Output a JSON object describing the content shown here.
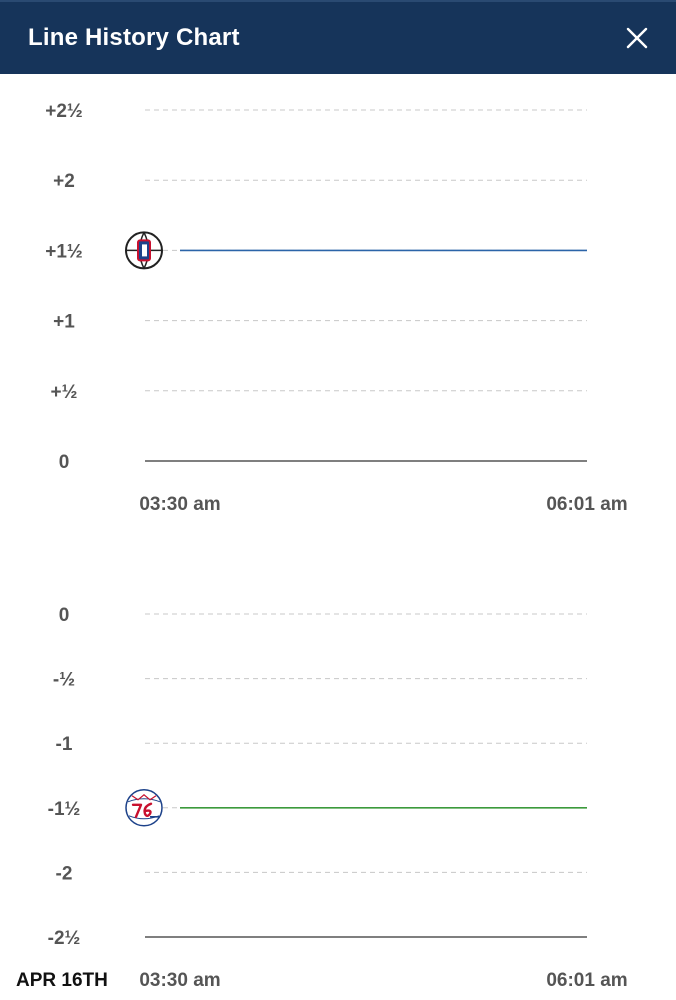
{
  "header": {
    "title": "Line History Chart",
    "close_icon": "close-icon"
  },
  "colors": {
    "header_bg": "#16345a",
    "grid": "#c8c8c8",
    "axis": "#555555"
  },
  "chart_data": [
    {
      "type": "line",
      "title": "",
      "xlabel": "",
      "ylabel": "",
      "x_ticks": [
        "03:30 am",
        "06:01 am"
      ],
      "y_ticks": [
        "+2½",
        "+2",
        "+1½",
        "+1",
        "+½",
        "0"
      ],
      "ylim": [
        0,
        2.5
      ],
      "grid": true,
      "series": [
        {
          "team_icon": "clippers-logo-icon",
          "color": "#2b64a8",
          "x": [
            "03:30 am",
            "06:01 am"
          ],
          "values": [
            1.5,
            1.5
          ]
        }
      ]
    },
    {
      "type": "line",
      "title": "",
      "xlabel": "",
      "ylabel": "",
      "x_ticks": [
        "03:30 am",
        "06:01 am"
      ],
      "y_ticks": [
        "0",
        "-½",
        "-1",
        "-1½",
        "-2",
        "-2½"
      ],
      "ylim": [
        -2.5,
        0
      ],
      "grid": true,
      "date_label": "APR 16TH",
      "series": [
        {
          "team_icon": "76ers-logo-icon",
          "color": "#3c9a3c",
          "x": [
            "03:30 am",
            "06:01 am"
          ],
          "values": [
            -1.5,
            -1.5
          ]
        }
      ]
    }
  ]
}
